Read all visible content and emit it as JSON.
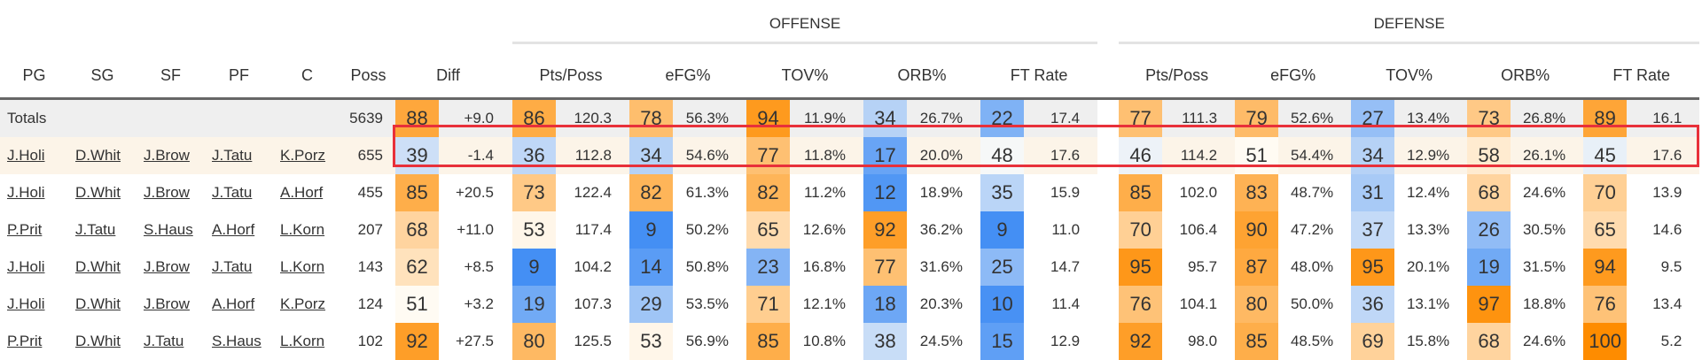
{
  "groups": {
    "offense": "OFFENSE",
    "defense": "DEFENSE"
  },
  "columns": {
    "pg": "PG",
    "sg": "SG",
    "sf": "SF",
    "pf": "PF",
    "c": "C",
    "poss": "Poss",
    "diff": "Diff",
    "stats": [
      "Pts/Poss",
      "eFG%",
      "TOV%",
      "ORB%",
      "FT Rate"
    ]
  },
  "colors": {
    "high": "#fe8c00",
    "mid": "#fffdf8",
    "low": "#3f8cf4"
  },
  "rows": [
    {
      "type": "totals",
      "label": "Totals",
      "lineup": [],
      "poss": "5639",
      "diff_pct": 88,
      "diff": "+9.0",
      "offense": [
        [
          86,
          "120.3"
        ],
        [
          78,
          "56.3%"
        ],
        [
          94,
          "11.9%"
        ],
        [
          34,
          "26.7%"
        ],
        [
          22,
          "17.4"
        ]
      ],
      "defense": [
        [
          77,
          "111.3"
        ],
        [
          79,
          "52.6%"
        ],
        [
          27,
          "13.4%"
        ],
        [
          73,
          "26.8%"
        ],
        [
          89,
          "16.1"
        ]
      ]
    },
    {
      "type": "highlight",
      "lineup": [
        "J.Holi",
        "D.Whit",
        "J.Brow",
        "J.Tatu",
        "K.Porz"
      ],
      "poss": "655",
      "diff_pct": 39,
      "diff": "-1.4",
      "offense": [
        [
          36,
          "112.8"
        ],
        [
          34,
          "54.6%"
        ],
        [
          77,
          "11.8%"
        ],
        [
          17,
          "20.0%"
        ],
        [
          48,
          "17.6"
        ]
      ],
      "defense": [
        [
          46,
          "114.2"
        ],
        [
          51,
          "54.4%"
        ],
        [
          34,
          "12.9%"
        ],
        [
          58,
          "26.1%"
        ],
        [
          45,
          "17.6"
        ]
      ]
    },
    {
      "type": "row",
      "lineup": [
        "J.Holi",
        "D.Whit",
        "J.Brow",
        "J.Tatu",
        "A.Horf"
      ],
      "poss": "455",
      "diff_pct": 85,
      "diff": "+20.5",
      "offense": [
        [
          73,
          "122.4"
        ],
        [
          82,
          "61.3%"
        ],
        [
          82,
          "11.2%"
        ],
        [
          12,
          "18.9%"
        ],
        [
          35,
          "15.9"
        ]
      ],
      "defense": [
        [
          85,
          "102.0"
        ],
        [
          83,
          "48.7%"
        ],
        [
          31,
          "12.4%"
        ],
        [
          68,
          "24.6%"
        ],
        [
          70,
          "13.9"
        ]
      ]
    },
    {
      "type": "row",
      "lineup": [
        "P.Prit",
        "J.Tatu",
        "S.Haus",
        "A.Horf",
        "L.Korn"
      ],
      "poss": "207",
      "diff_pct": 68,
      "diff": "+11.0",
      "offense": [
        [
          53,
          "117.4"
        ],
        [
          9,
          "50.2%"
        ],
        [
          65,
          "12.6%"
        ],
        [
          92,
          "36.2%"
        ],
        [
          9,
          "11.0"
        ]
      ],
      "defense": [
        [
          70,
          "106.4"
        ],
        [
          90,
          "47.2%"
        ],
        [
          37,
          "13.3%"
        ],
        [
          26,
          "30.5%"
        ],
        [
          65,
          "14.6"
        ]
      ]
    },
    {
      "type": "row",
      "lineup": [
        "J.Holi",
        "D.Whit",
        "J.Brow",
        "J.Tatu",
        "L.Korn"
      ],
      "poss": "143",
      "diff_pct": 62,
      "diff": "+8.5",
      "offense": [
        [
          9,
          "104.2"
        ],
        [
          14,
          "50.8%"
        ],
        [
          23,
          "16.8%"
        ],
        [
          77,
          "31.6%"
        ],
        [
          25,
          "14.7"
        ]
      ],
      "defense": [
        [
          95,
          "95.7"
        ],
        [
          87,
          "48.0%"
        ],
        [
          95,
          "20.1%"
        ],
        [
          19,
          "31.5%"
        ],
        [
          94,
          "9.5"
        ]
      ]
    },
    {
      "type": "row",
      "lineup": [
        "J.Holi",
        "D.Whit",
        "J.Brow",
        "A.Horf",
        "K.Porz"
      ],
      "poss": "124",
      "diff_pct": 51,
      "diff": "+3.2",
      "offense": [
        [
          19,
          "107.3"
        ],
        [
          29,
          "53.5%"
        ],
        [
          71,
          "12.1%"
        ],
        [
          18,
          "20.3%"
        ],
        [
          10,
          "11.4"
        ]
      ],
      "defense": [
        [
          76,
          "104.1"
        ],
        [
          80,
          "50.0%"
        ],
        [
          36,
          "13.1%"
        ],
        [
          97,
          "18.8%"
        ],
        [
          76,
          "13.4"
        ]
      ]
    },
    {
      "type": "row",
      "lineup": [
        "P.Prit",
        "D.Whit",
        "J.Tatu",
        "S.Haus",
        "L.Korn"
      ],
      "poss": "102",
      "diff_pct": 92,
      "diff": "+27.5",
      "offense": [
        [
          80,
          "125.5"
        ],
        [
          53,
          "56.9%"
        ],
        [
          85,
          "10.8%"
        ],
        [
          38,
          "24.5%"
        ],
        [
          15,
          "12.9"
        ]
      ],
      "defense": [
        [
          92,
          "98.0"
        ],
        [
          85,
          "48.5%"
        ],
        [
          69,
          "15.8%"
        ],
        [
          68,
          "24.6%"
        ],
        [
          100,
          "5.2"
        ]
      ]
    }
  ]
}
